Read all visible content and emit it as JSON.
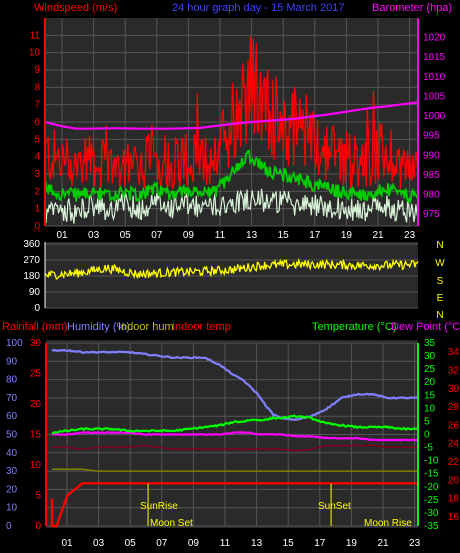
{
  "header": {
    "windspeed_label": "Windspeed (m/s)",
    "title": "24 hour graph day - 15 March 2017",
    "barometer_label": "Barometer (hpa)"
  },
  "bottom_header": {
    "rainfall_label": "Rainfall (mm)",
    "humidity_label": "Humidity (%)",
    "indoor_hum_label": "Indoor hum",
    "indoor_temp_label": "Indoor temp",
    "temperature_label": "Temperature (°C)",
    "dew_point_label": "Dew Point (°C)"
  },
  "compass": [
    "N",
    "W",
    "S",
    "E",
    "N"
  ],
  "annotations": {
    "sunrise": "SunRise",
    "sunset": "SunSet",
    "moonset": "Moon Set",
    "moonrise": "Moon Rise"
  },
  "colors": {
    "bg": "#000000",
    "plot_bg": "#2a2a2a",
    "grid": "#555555",
    "wind_gust": "#ff0000",
    "wind_avg": "#00cc00",
    "wind_light": "#d8f2d8",
    "barometer": "#ff00ff",
    "direction": "#ffff00",
    "rain": "#ff0000",
    "humidity": "#8080ff",
    "indoor_hum": "#808000",
    "indoor_temp": "#800020",
    "temperature": "#00ff00",
    "dewpoint": "#ff00ff",
    "axis_left": "#ff0000",
    "axis_right": "#ff00ff",
    "axis_humidity": "#8080ff",
    "axis_temp": "#00ff00",
    "axis_dew": "#ff0000"
  },
  "chart_data": [
    {
      "type": "line",
      "name": "wind-barometer",
      "title": "24 hour graph day - 15 March 2017",
      "ylabel": "Windspeed (m/s)",
      "y2label": "Barometer (hpa)",
      "xticks": [
        "01",
        "03",
        "05",
        "07",
        "09",
        "11",
        "13",
        "15",
        "17",
        "19",
        "21",
        "23"
      ],
      "ylim": [
        0,
        12
      ],
      "yticks": [
        0,
        1,
        2,
        3,
        4,
        5,
        6,
        7,
        8,
        9,
        10,
        11
      ],
      "y2lim": [
        972,
        1025
      ],
      "y2ticks": [
        975,
        980,
        985,
        990,
        995,
        1000,
        1005,
        1010,
        1015,
        1020
      ],
      "x": [
        0,
        1,
        2,
        3,
        4,
        5,
        6,
        7,
        8,
        9,
        10,
        11,
        12,
        13,
        14,
        15,
        16,
        17,
        18,
        19,
        20,
        21,
        22,
        23,
        24
      ],
      "series": [
        {
          "key": "gust",
          "values": [
            4.0,
            3.6,
            3.4,
            3.8,
            3.2,
            3.6,
            3.4,
            3.9,
            3.6,
            3.8,
            3.4,
            4.0,
            5.8,
            8.0,
            6.6,
            5.8,
            5.4,
            4.8,
            4.2,
            4.0,
            3.6,
            3.8,
            4.2,
            3.4,
            3.0
          ]
        },
        {
          "key": "avg",
          "values": [
            2.2,
            1.9,
            1.8,
            2.0,
            1.7,
            1.9,
            1.8,
            2.1,
            1.9,
            2.0,
            1.8,
            2.0,
            3.0,
            4.2,
            3.4,
            3.0,
            2.8,
            2.5,
            2.2,
            2.0,
            1.8,
            1.9,
            2.1,
            1.8,
            1.6
          ]
        },
        {
          "key": "light",
          "values": [
            0.6,
            1.0,
            0.8,
            1.1,
            0.9,
            1.2,
            1.0,
            1.3,
            1.1,
            1.2,
            1.0,
            1.2,
            1.4,
            1.6,
            1.5,
            1.4,
            1.3,
            1.2,
            1.1,
            1.0,
            0.9,
            1.0,
            1.1,
            0.9,
            0.8
          ]
        },
        {
          "key": "barometer",
          "axis": "right",
          "values": [
            998.5,
            997.5,
            996.8,
            996.8,
            996.9,
            996.9,
            996.8,
            996.8,
            996.8,
            996.9,
            997.0,
            997.5,
            998.0,
            998.4,
            998.7,
            999.0,
            999.3,
            999.8,
            1000.3,
            1000.9,
            1001.5,
            1002.1,
            1002.5,
            1003.0,
            1003.5
          ]
        }
      ]
    },
    {
      "type": "line",
      "name": "wind-direction",
      "ylim": [
        0,
        360
      ],
      "yticks": [
        0,
        90,
        180,
        270,
        360
      ],
      "x": [
        0,
        2,
        4,
        6,
        8,
        10,
        12,
        14,
        16,
        18,
        20,
        22,
        24
      ],
      "series": [
        {
          "key": "direction",
          "values": [
            185,
            195,
            225,
            190,
            200,
            205,
            215,
            240,
            245,
            245,
            240,
            240,
            245
          ]
        }
      ]
    },
    {
      "type": "line",
      "name": "rain-humidity-temperature",
      "xticks": [
        "01",
        "03",
        "05",
        "07",
        "09",
        "11",
        "13",
        "15",
        "17",
        "19",
        "21",
        "23"
      ],
      "ylim": [
        0,
        100
      ],
      "yticks_humidity": [
        0,
        10,
        20,
        30,
        40,
        50,
        60,
        70,
        80,
        90,
        100
      ],
      "rain_ticks": [
        0,
        5,
        10,
        15,
        20,
        25,
        30
      ],
      "temp_ticks": [
        -35,
        -30,
        -25,
        -20,
        -15,
        -10,
        -5,
        0,
        5,
        10,
        15,
        20,
        25,
        30,
        35
      ],
      "dew_ticks": [
        16,
        18,
        20,
        22,
        24,
        26,
        28,
        30,
        32,
        34
      ],
      "x": [
        0,
        1,
        2,
        3,
        4,
        5,
        6,
        7,
        8,
        9,
        10,
        11,
        12,
        12.5,
        13,
        13.5,
        14,
        14.5,
        15,
        16,
        17,
        18,
        19,
        20,
        21,
        22,
        23,
        24
      ],
      "series": [
        {
          "key": "humidity",
          "values": [
            96,
            96,
            95,
            95,
            95,
            95,
            94,
            93,
            92,
            92,
            92,
            88,
            82,
            80,
            76,
            72,
            66,
            61,
            59,
            58,
            60,
            64,
            70,
            72,
            72,
            70,
            70,
            70
          ]
        },
        {
          "key": "temperature",
          "values": [
            51,
            52,
            53,
            53,
            53,
            52,
            52,
            52,
            52,
            53,
            54,
            55,
            57,
            57,
            58,
            58,
            58,
            59,
            59,
            60,
            59,
            56,
            55,
            54,
            54,
            54,
            53,
            53
          ]
        },
        {
          "key": "dewpoint",
          "values": [
            50,
            50,
            51,
            51,
            51,
            51,
            50,
            50,
            50,
            50,
            50,
            50,
            51,
            51,
            51,
            50,
            50,
            50,
            50,
            49,
            49,
            48,
            48,
            48,
            47,
            47,
            47,
            47
          ]
        },
        {
          "key": "indoor_temp",
          "values": [
            43,
            43,
            42,
            43,
            43,
            43,
            44,
            43,
            42,
            42,
            42,
            42,
            42,
            42,
            42,
            42,
            42,
            42,
            42,
            41,
            42,
            44,
            44,
            44,
            44,
            43,
            43,
            43
          ]
        },
        {
          "key": "indoor_hum",
          "values": [
            31,
            31,
            31,
            30,
            30,
            30,
            30,
            30,
            30,
            30,
            30,
            30,
            30,
            30,
            30,
            30,
            30,
            30,
            30,
            30,
            30,
            30,
            30,
            30,
            30,
            30,
            30,
            30
          ]
        },
        {
          "key": "rain",
          "values": [
            2,
            5,
            7,
            7,
            7,
            7,
            7,
            7,
            7,
            7,
            7,
            7,
            7,
            7,
            7,
            7,
            7,
            7,
            7,
            7,
            7,
            7,
            7,
            7,
            7,
            7,
            7,
            7
          ]
        }
      ]
    }
  ]
}
